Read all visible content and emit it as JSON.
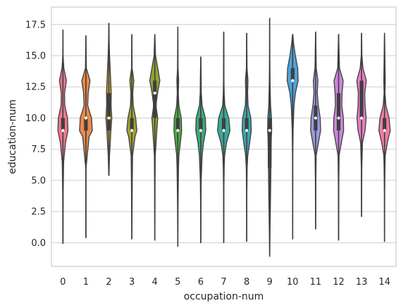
{
  "chart_data": {
    "type": "violin",
    "xlabel": "occupation-num",
    "ylabel": "education-num",
    "ylim": [
      -1.9,
      18.9
    ],
    "grid": "y",
    "y_ticks": [
      0.0,
      2.5,
      5.0,
      7.5,
      10.0,
      12.5,
      15.0,
      17.5
    ],
    "y_tick_labels": [
      "0.0",
      "2.5",
      "5.0",
      "7.5",
      "10.0",
      "12.5",
      "15.0",
      "17.5"
    ],
    "categories": [
      "0",
      "1",
      "2",
      "3",
      "4",
      "5",
      "6",
      "7",
      "8",
      "9",
      "10",
      "11",
      "12",
      "13",
      "14"
    ],
    "violins": [
      {
        "category": "0",
        "color": "#f0778c",
        "min": -0.1,
        "max": 17.1,
        "q1": 9.0,
        "median": 9.0,
        "q3": 10.0,
        "profile": [
          [
            0,
            0.02
          ],
          [
            4,
            0.03
          ],
          [
            6.5,
            0.08
          ],
          [
            8,
            0.28
          ],
          [
            9,
            0.55
          ],
          [
            10,
            0.5
          ],
          [
            11,
            0.2
          ],
          [
            12,
            0.18
          ],
          [
            13,
            0.38
          ],
          [
            14,
            0.1
          ],
          [
            15,
            0.02
          ],
          [
            17,
            0.01
          ]
        ]
      },
      {
        "category": "1",
        "color": "#e98a4a",
        "min": 0.4,
        "max": 16.6,
        "q1": 9.0,
        "median": 10.0,
        "q3": 10.0,
        "profile": [
          [
            0.4,
            0.01
          ],
          [
            6,
            0.02
          ],
          [
            8.5,
            0.35
          ],
          [
            9,
            0.7
          ],
          [
            9.5,
            0.65
          ],
          [
            10,
            0.62
          ],
          [
            10.5,
            0.4
          ],
          [
            11,
            0.2
          ],
          [
            12,
            0.25
          ],
          [
            13,
            0.45
          ],
          [
            14,
            0.05
          ],
          [
            16.6,
            0.01
          ]
        ]
      },
      {
        "category": "2",
        "color": "#c99c30",
        "min": 5.4,
        "max": 17.6,
        "q1": 9.0,
        "median": 10.0,
        "q3": 12.0,
        "profile": [
          [
            5.4,
            0.02
          ],
          [
            7,
            0.07
          ],
          [
            8,
            0.15
          ],
          [
            9,
            0.22
          ],
          [
            10,
            0.32
          ],
          [
            11,
            0.24
          ],
          [
            12,
            0.26
          ],
          [
            13,
            0.2
          ],
          [
            14,
            0.14
          ],
          [
            15,
            0.08
          ],
          [
            16,
            0.04
          ],
          [
            17.6,
            0.01
          ]
        ]
      },
      {
        "category": "3",
        "color": "#a3a032",
        "min": 0.3,
        "max": 16.7,
        "q1": 9.0,
        "median": 9.0,
        "q3": 10.0,
        "profile": [
          [
            0.3,
            0.01
          ],
          [
            3,
            0.03
          ],
          [
            5,
            0.05
          ],
          [
            7,
            0.08
          ],
          [
            8.5,
            0.35
          ],
          [
            9,
            0.55
          ],
          [
            10,
            0.42
          ],
          [
            11,
            0.15
          ],
          [
            12,
            0.1
          ],
          [
            13,
            0.22
          ],
          [
            14,
            0.03
          ],
          [
            16.7,
            0.01
          ]
        ]
      },
      {
        "category": "4",
        "color": "#8ea634",
        "min": 0.2,
        "max": 16.7,
        "q1": 10.0,
        "median": 12.0,
        "q3": 13.0,
        "profile": [
          [
            0.2,
            0.01
          ],
          [
            5,
            0.03
          ],
          [
            7,
            0.05
          ],
          [
            9,
            0.22
          ],
          [
            10,
            0.32
          ],
          [
            11,
            0.12
          ],
          [
            12,
            0.3
          ],
          [
            13,
            0.55
          ],
          [
            14,
            0.32
          ],
          [
            15,
            0.08
          ],
          [
            16,
            0.04
          ],
          [
            16.7,
            0.01
          ]
        ]
      },
      {
        "category": "5",
        "color": "#4fac46",
        "min": -0.3,
        "max": 17.3,
        "q1": 9.0,
        "median": 9.0,
        "q3": 10.0,
        "profile": [
          [
            -0.3,
            0.01
          ],
          [
            3,
            0.03
          ],
          [
            6,
            0.08
          ],
          [
            7,
            0.12
          ],
          [
            8,
            0.28
          ],
          [
            9,
            0.42
          ],
          [
            10,
            0.38
          ],
          [
            11,
            0.12
          ],
          [
            12,
            0.06
          ],
          [
            13,
            0.1
          ],
          [
            14,
            0.03
          ],
          [
            17.3,
            0.01
          ]
        ]
      },
      {
        "category": "6",
        "color": "#3ca97a",
        "min": 0.0,
        "max": 14.9,
        "q1": 9.0,
        "median": 9.0,
        "q3": 10.0,
        "profile": [
          [
            0,
            0.01
          ],
          [
            3,
            0.02
          ],
          [
            5,
            0.05
          ],
          [
            7,
            0.15
          ],
          [
            8,
            0.3
          ],
          [
            9,
            0.55
          ],
          [
            10,
            0.5
          ],
          [
            11,
            0.15
          ],
          [
            12,
            0.06
          ],
          [
            13,
            0.05
          ],
          [
            14.9,
            0.01
          ]
        ]
      },
      {
        "category": "7",
        "color": "#3aa89a",
        "min": 0.0,
        "max": 16.9,
        "q1": 9.0,
        "median": 9.0,
        "q3": 10.0,
        "profile": [
          [
            0,
            0.01
          ],
          [
            4,
            0.02
          ],
          [
            6,
            0.05
          ],
          [
            7,
            0.1
          ],
          [
            8,
            0.3
          ],
          [
            9,
            0.68
          ],
          [
            10,
            0.55
          ],
          [
            11,
            0.12
          ],
          [
            12,
            0.05
          ],
          [
            13,
            0.03
          ],
          [
            16.9,
            0.01
          ]
        ]
      },
      {
        "category": "8",
        "color": "#3ca6ad",
        "min": 0.1,
        "max": 16.8,
        "q1": 9.0,
        "median": 9.0,
        "q3": 10.0,
        "profile": [
          [
            0.1,
            0.01
          ],
          [
            4,
            0.02
          ],
          [
            6,
            0.05
          ],
          [
            7,
            0.12
          ],
          [
            8,
            0.32
          ],
          [
            9,
            0.5
          ],
          [
            10,
            0.45
          ],
          [
            11,
            0.15
          ],
          [
            12,
            0.1
          ],
          [
            13,
            0.14
          ],
          [
            14,
            0.04
          ],
          [
            16.8,
            0.01
          ]
        ]
      },
      {
        "category": "9",
        "color": "#3fa3c0",
        "min": -1.1,
        "max": 18.0,
        "q1": 6.0,
        "median": 9.0,
        "q3": 10.0,
        "profile": [
          [
            -1.1,
            0.01
          ],
          [
            1,
            0.04
          ],
          [
            3,
            0.08
          ],
          [
            5,
            0.12
          ],
          [
            7,
            0.15
          ],
          [
            8.5,
            0.18
          ],
          [
            9,
            0.22
          ],
          [
            10,
            0.2
          ],
          [
            11,
            0.1
          ],
          [
            13,
            0.04
          ],
          [
            15,
            0.02
          ],
          [
            18,
            0.01
          ]
        ]
      },
      {
        "category": "10",
        "color": "#4ea2dc",
        "min": 0.3,
        "max": 16.7,
        "q1": 13.0,
        "median": 13.0,
        "q3": 14.0,
        "profile": [
          [
            0.3,
            0.01
          ],
          [
            7,
            0.02
          ],
          [
            9,
            0.05
          ],
          [
            10,
            0.1
          ],
          [
            11,
            0.15
          ],
          [
            12,
            0.3
          ],
          [
            13,
            0.6
          ],
          [
            14,
            0.55
          ],
          [
            15,
            0.3
          ],
          [
            16,
            0.1
          ],
          [
            16.7,
            0.02
          ]
        ]
      },
      {
        "category": "11",
        "color": "#9a99dc",
        "min": 1.1,
        "max": 16.9,
        "q1": 9.0,
        "median": 10.0,
        "q3": 11.0,
        "profile": [
          [
            1.1,
            0.01
          ],
          [
            5,
            0.03
          ],
          [
            7,
            0.06
          ],
          [
            8,
            0.3
          ],
          [
            9,
            0.55
          ],
          [
            10,
            0.5
          ],
          [
            11,
            0.3
          ],
          [
            12,
            0.18
          ],
          [
            13,
            0.25
          ],
          [
            14,
            0.07
          ],
          [
            16.9,
            0.01
          ]
        ]
      },
      {
        "category": "12",
        "color": "#cd86dc",
        "min": 0.2,
        "max": 16.7,
        "q1": 9.0,
        "median": 10.0,
        "q3": 12.0,
        "profile": [
          [
            0.2,
            0.01
          ],
          [
            5,
            0.03
          ],
          [
            7,
            0.06
          ],
          [
            8,
            0.3
          ],
          [
            9,
            0.55
          ],
          [
            10,
            0.52
          ],
          [
            11,
            0.35
          ],
          [
            12,
            0.38
          ],
          [
            13,
            0.5
          ],
          [
            14,
            0.1
          ],
          [
            16.7,
            0.01
          ]
        ]
      },
      {
        "category": "13",
        "color": "#e57fc7",
        "min": 2.1,
        "max": 16.8,
        "q1": 10.0,
        "median": 10.0,
        "q3": 13.0,
        "profile": [
          [
            2.1,
            0.01
          ],
          [
            6,
            0.03
          ],
          [
            8,
            0.1
          ],
          [
            9,
            0.38
          ],
          [
            10,
            0.5
          ],
          [
            11,
            0.38
          ],
          [
            12,
            0.35
          ],
          [
            13,
            0.52
          ],
          [
            14,
            0.15
          ],
          [
            15,
            0.04
          ],
          [
            16.8,
            0.01
          ]
        ]
      },
      {
        "category": "14",
        "color": "#f07ba8",
        "min": 0.1,
        "max": 16.8,
        "q1": 9.0,
        "median": 9.0,
        "q3": 10.0,
        "profile": [
          [
            0.1,
            0.01
          ],
          [
            4,
            0.02
          ],
          [
            6,
            0.05
          ],
          [
            7,
            0.08
          ],
          [
            8,
            0.3
          ],
          [
            9,
            0.62
          ],
          [
            10,
            0.5
          ],
          [
            11,
            0.15
          ],
          [
            12,
            0.05
          ],
          [
            13,
            0.08
          ],
          [
            16.8,
            0.01
          ]
        ]
      }
    ]
  }
}
